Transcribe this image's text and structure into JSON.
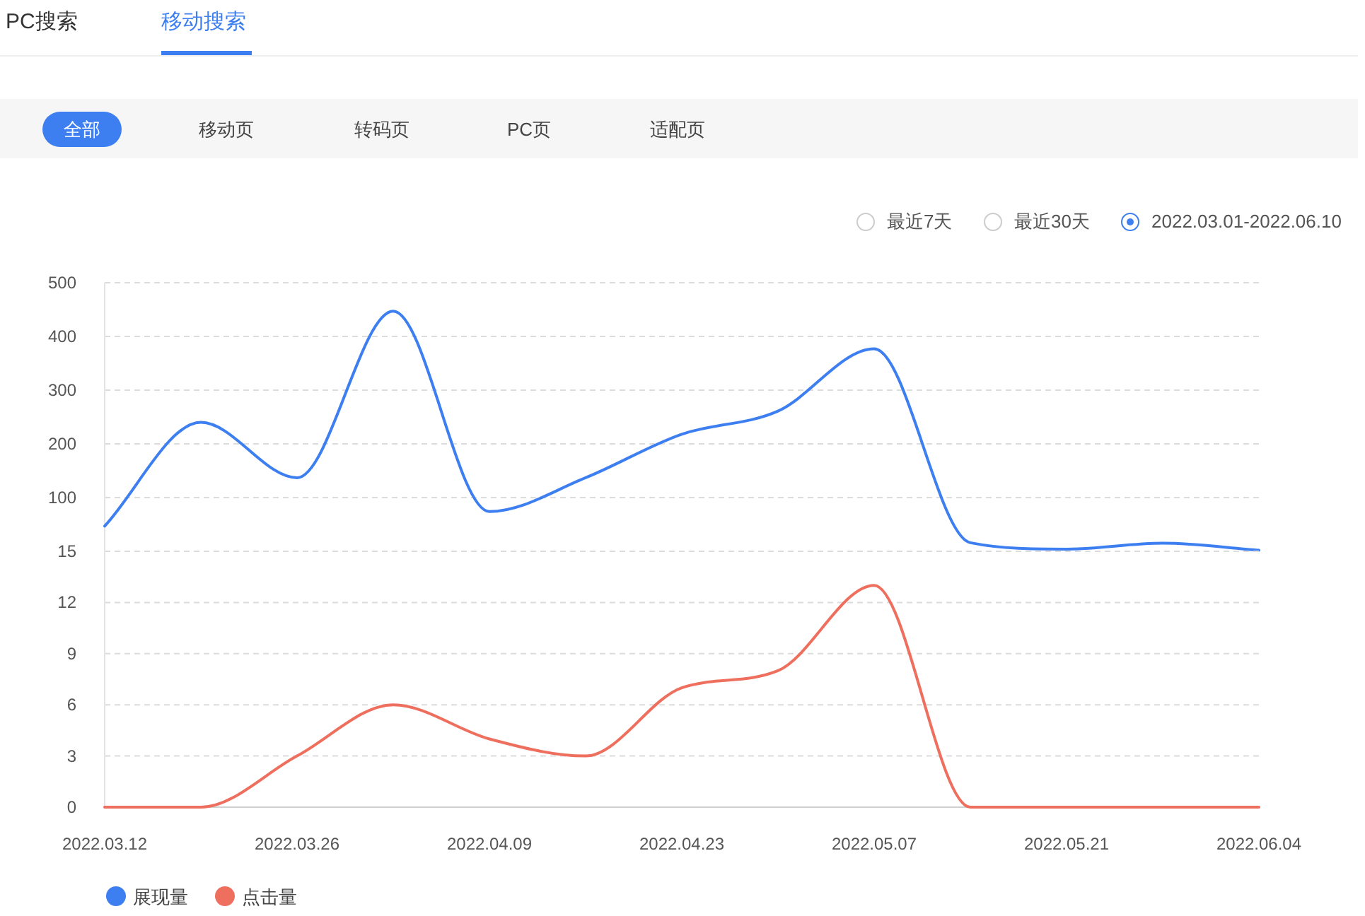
{
  "chart_data": [
    {
      "type": "line",
      "annotations": [
        "PC搜索",
        "移动搜索",
        "全部",
        "移动页",
        "转码页",
        "PC页",
        "适配页",
        "最近7天",
        "最近30天",
        "2022.03.01-2022.06.10"
      ],
      "x": [
        "2022-03-12",
        "2022-03-19",
        "2022-03-26",
        "2022-04-02",
        "2022-04-09",
        "2022-04-16",
        "2022-04-23",
        "2022-04-30",
        "2022-05-07",
        "2022-05-14",
        "2022-05-21",
        "2022-05-28",
        "2022-06-04"
      ],
      "series": [
        {
          "name": "展现量",
          "color": "#3d7ff0",
          "values": [
            47,
            240,
            137,
            447,
            74,
            137,
            218,
            261,
            377,
            16,
            4,
            15,
            2
          ]
        }
      ],
      "xlim": [
        "2022-03-12",
        "2022-06-04"
      ],
      "ylim": [
        0,
        500
      ],
      "yticks": [
        100,
        200,
        300,
        400,
        500
      ],
      "tick_labels": "y",
      "grid": "y",
      "legend": "bottom",
      "marker": "none"
    },
    {
      "type": "line",
      "x": [
        "2022-03-12",
        "2022-03-19",
        "2022-03-26",
        "2022-04-02",
        "2022-04-09",
        "2022-04-16",
        "2022-04-23",
        "2022-04-30",
        "2022-05-07",
        "2022-05-14",
        "2022-05-21",
        "2022-05-28",
        "2022-06-04"
      ],
      "series": [
        {
          "name": "点击量",
          "color": "#ef6f5e",
          "values": [
            0,
            0,
            3,
            6,
            4,
            3,
            7,
            8,
            13,
            0,
            0,
            0,
            0
          ]
        }
      ],
      "xlim": [
        "2022-03-12",
        "2022-06-04"
      ],
      "xticks": [
        {
          "value": "2022-03-12",
          "label": "2022.03.12"
        },
        {
          "value": "2022-03-26",
          "label": "2022.03.26"
        },
        {
          "value": "2022-04-09",
          "label": "2022.04.09"
        },
        {
          "value": "2022-04-23",
          "label": "2022.04.23"
        },
        {
          "value": "2022-05-07",
          "label": "2022.05.07"
        },
        {
          "value": "2022-05-21",
          "label": "2022.05.21"
        },
        {
          "value": "2022-06-04",
          "label": "2022.06.04"
        }
      ],
      "ylim": [
        0,
        15
      ],
      "yticks": [
        0,
        3,
        6,
        9,
        12,
        15
      ],
      "grid": "y",
      "legend": "bottom",
      "marker": "none"
    }
  ]
}
